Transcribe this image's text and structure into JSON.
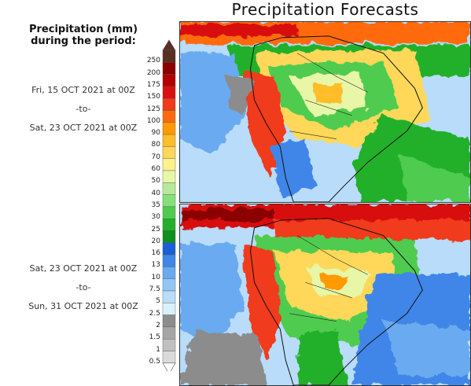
{
  "title": "Precipitation Forecasts",
  "legend": {
    "title_line1": "Precipitation (mm)",
    "title_line2": "during the period:",
    "levels": [
      "250",
      "200",
      "175",
      "150",
      "125",
      "100",
      "90",
      "80",
      "70",
      "60",
      "50",
      "40",
      "35",
      "30",
      "25",
      "20",
      "16",
      "13",
      "10",
      "7.5",
      "5",
      "2.5",
      "2",
      "1.5",
      "1",
      "0.5"
    ],
    "colors": [
      "#5a2f22",
      "#8b0000",
      "#b40000",
      "#d81010",
      "#f03a1a",
      "#ff6a10",
      "#ff9a00",
      "#ffbe2a",
      "#ffd85a",
      "#fff08c",
      "#e8f6a8",
      "#b6ea9a",
      "#86e07a",
      "#4fcc4f",
      "#22b02a",
      "#0f8f1e",
      "#1a5fd6",
      "#3f86e8",
      "#6aaaf0",
      "#92c6f6",
      "#b8dcfa",
      "#d9f0ff",
      "#8c8c8c",
      "#a6a6a6",
      "#c0c0c0",
      "#dadada"
    ]
  },
  "periods": [
    {
      "start": "Fri, 15 OCT 2021 at 00Z",
      "sep": "-to-",
      "end": "Sat, 23 OCT 2021 at 00Z"
    },
    {
      "start": "Sat, 23 OCT 2021 at 00Z",
      "sep": "-to-",
      "end": "Sun, 31 OCT 2021 at 00Z"
    }
  ]
}
